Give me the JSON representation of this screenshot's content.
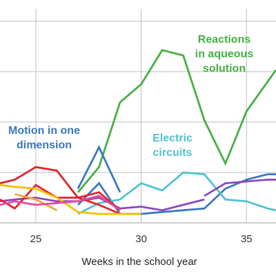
{
  "chart_data": {
    "type": "line",
    "title": "",
    "xlabel": "Weeks in the school year",
    "ylabel": "",
    "xlim": [
      23.3,
      36.4
    ],
    "ylim": [
      0,
      1.15
    ],
    "x_ticks": [
      25,
      30,
      35
    ],
    "y_gridlines": [
      0,
      0.28,
      0.56,
      0.84,
      1.12
    ],
    "grid": true,
    "legend": "none",
    "annotations": [
      {
        "id": "reactions",
        "lines": [
          "Reactions",
          "in aqueous",
          "solution"
        ],
        "color": "#44b044"
      },
      {
        "id": "motion",
        "lines": [
          "Motion in one",
          "dimension"
        ],
        "color": "#3a78c0"
      },
      {
        "id": "electric",
        "lines": [
          "Electric",
          "circuits"
        ],
        "color": "#4fc3cf"
      }
    ],
    "series": [
      {
        "color": "#44b044",
        "x": [
          27,
          28,
          29,
          30,
          31,
          32,
          33,
          34,
          35,
          36.4
        ],
        "y": [
          0.17,
          0.31,
          0.67,
          0.77,
          0.96,
          0.93,
          0.57,
          0.33,
          0.62,
          0.85
        ]
      },
      {
        "color": "#3a78c0",
        "x": [
          27,
          28,
          29
        ],
        "y": [
          0.19,
          0.42,
          0.17
        ]
      },
      {
        "color": "#3a78c0",
        "x": [
          27,
          28,
          29
        ],
        "y": [
          0.1,
          0.22,
          0.05
        ]
      },
      {
        "color": "#3a78c0",
        "x": [
          29,
          30,
          31,
          32,
          33,
          34,
          35,
          36,
          36.4
        ],
        "y": [
          0.05,
          0.05,
          0.06,
          0.07,
          0.08,
          0.19,
          0.24,
          0.27,
          0.27
        ]
      },
      {
        "color": "#4fc3cf",
        "x": [
          27,
          28,
          29,
          30,
          31,
          32,
          33,
          34,
          35,
          36,
          36.4
        ],
        "y": [
          0.05,
          0.11,
          0.13,
          0.22,
          0.18,
          0.28,
          0.27,
          0.13,
          0.12,
          0.08,
          0.07
        ]
      },
      {
        "color": "#8b47b8",
        "x": [
          23.3,
          24,
          25,
          26,
          27,
          28,
          29,
          30,
          31,
          32,
          33
        ],
        "y": [
          0.12,
          0.13,
          0.14,
          0.12,
          0.12,
          0.14,
          0.08,
          0.09,
          0.07,
          0.1,
          0.13
        ]
      },
      {
        "color": "#8b47b8",
        "x": [
          33,
          34,
          35,
          36,
          36.4
        ],
        "y": [
          0.15,
          0.22,
          0.23,
          0.24,
          0.24
        ]
      },
      {
        "color": "#e3222a",
        "x": [
          23.3,
          24,
          25,
          26,
          27,
          28,
          29
        ],
        "y": [
          0.22,
          0.24,
          0.31,
          0.29,
          0.14,
          0.17,
          0.07
        ]
      },
      {
        "color": "#e3222a",
        "x": [
          23.3,
          24,
          25,
          26,
          27,
          28,
          29
        ],
        "y": [
          0.13,
          0.08,
          0.21,
          0.14,
          0.14,
          0.1,
          0.05
        ]
      },
      {
        "color": "#f0a63a",
        "x": [
          24,
          25,
          26
        ],
        "y": [
          0.16,
          0.13,
          0.07
        ]
      },
      {
        "color": "#f5c000",
        "x": [
          23.3,
          24,
          25,
          26,
          27,
          28,
          29,
          30
        ],
        "y": [
          0.21,
          0.2,
          0.19,
          0.14,
          0.06,
          0.05,
          0.05,
          0.05
        ]
      },
      {
        "color": "#e24ca0",
        "x": [
          23.3,
          24,
          25,
          26,
          27,
          28,
          29
        ],
        "y": [
          0.1,
          0.12,
          0.1,
          0.11,
          0.12,
          0.15,
          0.07
        ]
      }
    ]
  }
}
